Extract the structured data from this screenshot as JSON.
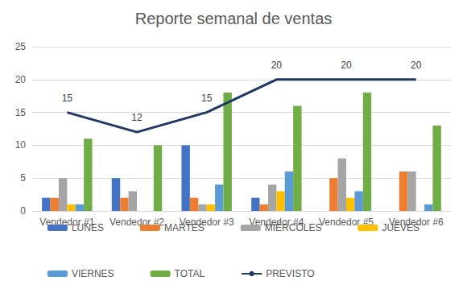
{
  "chart_data": {
    "type": "bar",
    "title": "Reporte semanal de ventas",
    "categories": [
      "Vendedor #1",
      "Vendedor #2",
      "Vendedor #3",
      "Vendedor #4",
      "Vendedor #5",
      "Vendedor #6"
    ],
    "series": [
      {
        "name": "LUNES",
        "color": "#4472c4",
        "values": [
          2,
          5,
          10,
          2,
          0,
          0
        ]
      },
      {
        "name": "MARTES",
        "color": "#ed7d31",
        "values": [
          2,
          2,
          2,
          1,
          5,
          6
        ]
      },
      {
        "name": "MIÉRCOLES",
        "color": "#a5a5a5",
        "values": [
          5,
          3,
          1,
          4,
          8,
          6
        ]
      },
      {
        "name": "JUEVES",
        "color": "#ffc000",
        "values": [
          1,
          0,
          1,
          3,
          2,
          0
        ]
      },
      {
        "name": "VIERNES",
        "color": "#5b9bd5",
        "values": [
          1,
          0,
          4,
          6,
          3,
          1
        ]
      },
      {
        "name": "TOTAL",
        "color": "#70ad47",
        "values": [
          11,
          10,
          18,
          16,
          18,
          13
        ]
      },
      {
        "name": "PREVISTO",
        "color": "#203864",
        "type": "line",
        "marker": "none",
        "data_labels": true,
        "values": [
          15,
          12,
          15,
          20,
          20,
          20
        ]
      }
    ],
    "ylim": [
      0,
      25
    ],
    "yticks": [
      0,
      5,
      10,
      15,
      20,
      25
    ],
    "grid": true,
    "legend": "bottom"
  }
}
